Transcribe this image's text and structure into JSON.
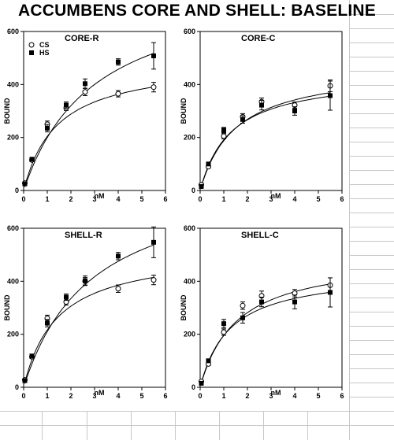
{
  "title": "ACCUMBENS CORE AND SHELL: BASELINE",
  "colors": {
    "background": "#ffffff",
    "ink": "#000000",
    "gridline": "#c8c8c8"
  },
  "chart_data": [
    {
      "type": "scatter",
      "panel_label": "CORE-R",
      "xlabel": "nM",
      "ylabel": "BOUND",
      "xlim": [
        0,
        6
      ],
      "ylim": [
        0,
        600
      ],
      "xticks": [
        "0",
        "1",
        "2",
        "3",
        "4",
        "5",
        "6"
      ],
      "yticks": [
        "0",
        "200",
        "400",
        "600"
      ],
      "legend": {
        "position": "top-left",
        "entries": [
          {
            "label": "CS",
            "marker": "open-circle"
          },
          {
            "label": "HS",
            "marker": "filled-square"
          }
        ]
      },
      "series": [
        {
          "name": "CS",
          "marker": "open-circle",
          "x": [
            0.05,
            0.35,
            1.0,
            1.8,
            2.6,
            4.0,
            5.5
          ],
          "y": [
            28,
            115,
            250,
            312,
            372,
            365,
            390
          ],
          "err": [
            4,
            6,
            12,
            10,
            14,
            12,
            18
          ],
          "fit": {
            "bmax": 490,
            "kd": 1.4
          }
        },
        {
          "name": "HS",
          "marker": "filled-square",
          "x": [
            0.05,
            0.35,
            1.0,
            1.8,
            2.6,
            4.0,
            5.5
          ],
          "y": [
            25,
            118,
            235,
            322,
            403,
            485,
            508
          ],
          "err": [
            4,
            6,
            14,
            12,
            18,
            12,
            50
          ],
          "fit": {
            "bmax": 800,
            "kd": 3.0
          }
        }
      ]
    },
    {
      "type": "scatter",
      "panel_label": "CORE-C",
      "xlabel": "nM",
      "ylabel": "BOUND",
      "xlim": [
        0,
        6
      ],
      "ylim": [
        0,
        600
      ],
      "xticks": [
        "0",
        "1",
        "2",
        "3",
        "4",
        "5",
        "6"
      ],
      "yticks": [
        "0",
        "200",
        "400",
        "600"
      ],
      "series": [
        {
          "name": "CS",
          "marker": "open-circle",
          "x": [
            0.05,
            0.35,
            1.0,
            1.8,
            2.6,
            4.0,
            5.5
          ],
          "y": [
            22,
            90,
            205,
            278,
            335,
            322,
            395
          ],
          "err": [
            4,
            6,
            10,
            12,
            14,
            12,
            22
          ],
          "fit": {
            "bmax": 470,
            "kd": 1.5
          }
        },
        {
          "name": "HS",
          "marker": "filled-square",
          "x": [
            0.05,
            0.35,
            1.0,
            1.8,
            2.6,
            4.0,
            5.5
          ],
          "y": [
            15,
            100,
            228,
            268,
            322,
            300,
            358
          ],
          "err": [
            4,
            6,
            10,
            14,
            18,
            16,
            55
          ],
          "fit": {
            "bmax": 440,
            "kd": 1.3
          }
        }
      ]
    },
    {
      "type": "scatter",
      "panel_label": "SHELL-R",
      "xlabel": "nM",
      "ylabel": "BOUND",
      "xlim": [
        0,
        6
      ],
      "ylim": [
        0,
        600
      ],
      "xticks": [
        "0",
        "1",
        "2",
        "3",
        "4",
        "5",
        "6"
      ],
      "yticks": [
        "0",
        "200",
        "400",
        "600"
      ],
      "series": [
        {
          "name": "CS",
          "marker": "open-circle",
          "x": [
            0.05,
            0.35,
            1.0,
            1.8,
            2.6,
            4.0,
            5.5
          ],
          "y": [
            28,
            115,
            260,
            322,
            400,
            372,
            405
          ],
          "err": [
            4,
            6,
            12,
            12,
            14,
            14,
            18
          ],
          "fit": {
            "bmax": 520,
            "kd": 1.4
          }
        },
        {
          "name": "HS",
          "marker": "filled-square",
          "x": [
            0.05,
            0.35,
            1.0,
            1.8,
            2.6,
            4.0,
            5.5
          ],
          "y": [
            25,
            118,
            242,
            340,
            402,
            495,
            547
          ],
          "err": [
            4,
            6,
            14,
            12,
            18,
            14,
            58
          ],
          "fit": {
            "bmax": 820,
            "kd": 2.9
          }
        }
      ]
    },
    {
      "type": "scatter",
      "panel_label": "SHELL-C",
      "xlabel": "nM",
      "ylabel": "BOUND",
      "xlim": [
        0,
        6
      ],
      "ylim": [
        0,
        600
      ],
      "xticks": [
        "0",
        "1",
        "2",
        "3",
        "4",
        "5",
        "6"
      ],
      "yticks": [
        "0",
        "200",
        "400",
        "600"
      ],
      "series": [
        {
          "name": "CS",
          "marker": "open-circle",
          "x": [
            0.05,
            0.35,
            1.0,
            1.8,
            2.6,
            4.0,
            5.5
          ],
          "y": [
            22,
            88,
            208,
            308,
            345,
            355,
            385
          ],
          "err": [
            4,
            6,
            12,
            14,
            18,
            14,
            28
          ],
          "fit": {
            "bmax": 500,
            "kd": 1.55
          }
        },
        {
          "name": "HS",
          "marker": "filled-square",
          "x": [
            0.05,
            0.35,
            1.0,
            1.8,
            2.6,
            4.0,
            5.5
          ],
          "y": [
            15,
            100,
            240,
            262,
            322,
            322,
            358
          ],
          "err": [
            4,
            6,
            16,
            20,
            18,
            26,
            55
          ],
          "fit": {
            "bmax": 440,
            "kd": 1.25
          }
        }
      ]
    }
  ]
}
